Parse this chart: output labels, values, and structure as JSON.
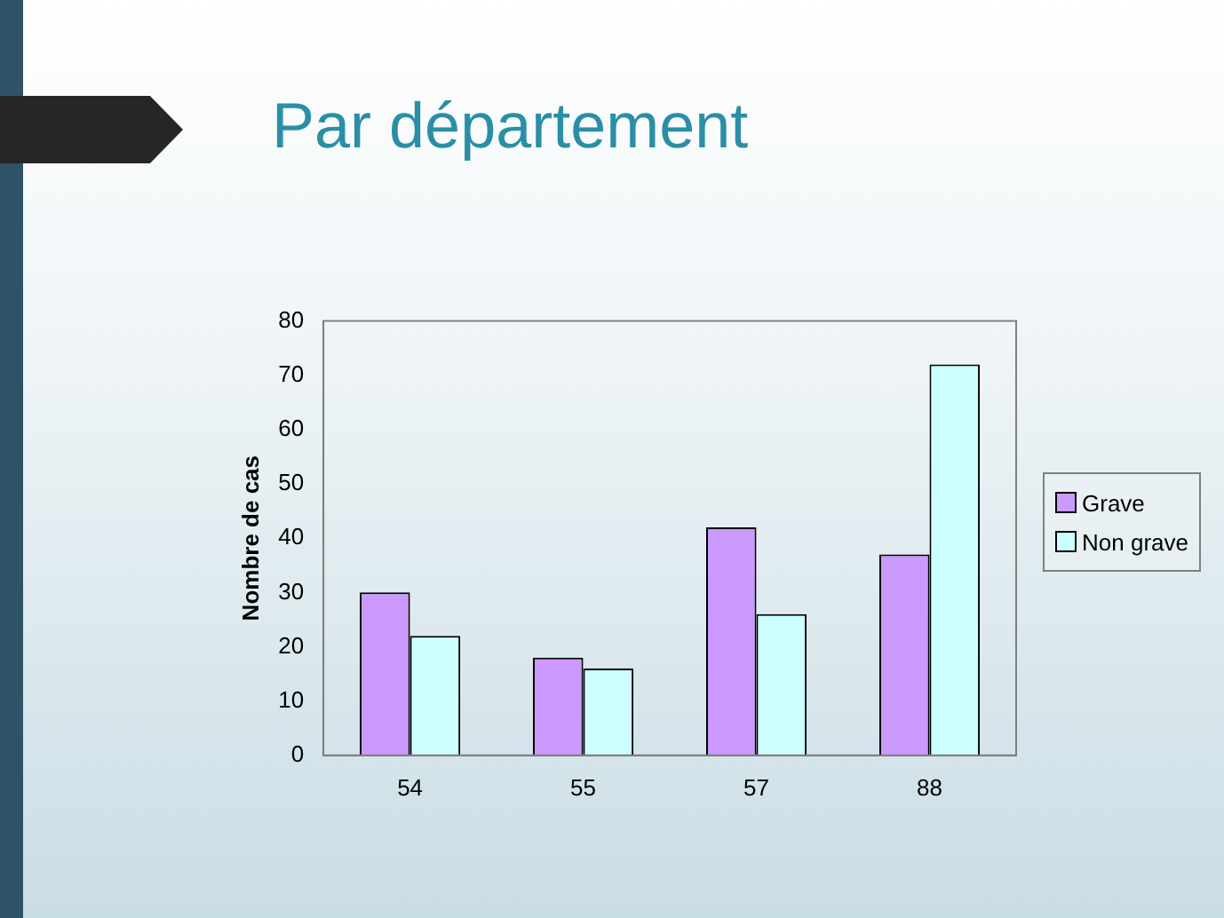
{
  "chart_data": {
    "type": "bar",
    "title": "Par département",
    "ylabel": "Nombre de cas",
    "categories": [
      "54",
      "55",
      "57",
      "88"
    ],
    "series": [
      {
        "name": "Grave",
        "color": "#cc99ff",
        "values": [
          30,
          18,
          42,
          37
        ]
      },
      {
        "name": "Non grave",
        "color": "#ccffff",
        "values": [
          22,
          16,
          26,
          72
        ]
      }
    ],
    "ylim": [
      0,
      80
    ],
    "yticks": [
      0,
      10,
      20,
      30,
      40,
      50,
      60,
      70,
      80
    ],
    "grid": false,
    "legend": "right"
  }
}
